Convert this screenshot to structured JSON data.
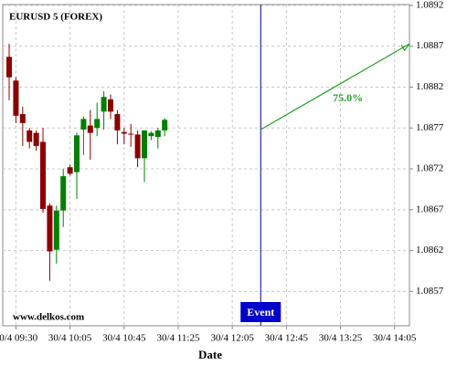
{
  "chart_data": {
    "type": "candlestick",
    "title": "EURUSD 5 (FOREX)",
    "x_label": "Date",
    "watermark": "www.delkos.com",
    "up_color": "#008000",
    "down_color": "#8b0000",
    "grid": true,
    "x": [
      0,
      1,
      2,
      3,
      4,
      5,
      6,
      7,
      8,
      9,
      10,
      11,
      12,
      13,
      14,
      15,
      16,
      17,
      18,
      19,
      20,
      21,
      22,
      23
    ],
    "open": [
      1.08857,
      1.08828,
      1.08787,
      1.08767,
      1.08764,
      1.08753,
      1.08675,
      1.08621,
      1.08669,
      1.08722,
      1.08716,
      1.08768,
      1.08773,
      1.0877,
      1.0879,
      1.08805,
      1.08787,
      1.08765,
      1.08763,
      1.08762,
      1.08733,
      1.0876,
      1.08759,
      1.08767
    ],
    "high": [
      1.08873,
      1.08832,
      1.08796,
      1.0877,
      1.08767,
      1.0877,
      1.08678,
      1.08675,
      1.0872,
      1.08725,
      1.08764,
      1.08784,
      1.08792,
      1.08801,
      1.08815,
      1.08811,
      1.08792,
      1.0877,
      1.08775,
      1.08767,
      1.08767,
      1.08766,
      1.0877,
      1.08782
    ],
    "low": [
      1.08804,
      1.08776,
      1.08748,
      1.08745,
      1.08742,
      1.08666,
      1.08583,
      1.08604,
      1.08649,
      1.08712,
      1.08683,
      1.08737,
      1.08731,
      1.0876,
      1.08768,
      1.08781,
      1.0875,
      1.0875,
      1.08747,
      1.08722,
      1.08704,
      1.08755,
      1.08745,
      1.0876
    ],
    "close": [
      1.08832,
      1.08785,
      1.08776,
      1.08753,
      1.08748,
      1.08671,
      1.08619,
      1.08669,
      1.08711,
      1.08714,
      1.08761,
      1.08781,
      1.08764,
      1.08781,
      1.08808,
      1.0879,
      1.08767,
      1.08763,
      1.08762,
      1.08733,
      1.08767,
      1.08764,
      1.08767,
      1.0878
    ],
    "xlim": [
      -0.95,
      59.2
    ],
    "ylim": [
      1.08528,
      1.08921
    ],
    "yticks": [
      1.0857,
      1.0862,
      1.0867,
      1.0872,
      1.0877,
      1.0882,
      1.0887,
      1.0892
    ],
    "xticks": [
      {
        "value": 1,
        "label": "30/4 09:30"
      },
      {
        "value": 9,
        "label": "30/4 10:05"
      },
      {
        "value": 17,
        "label": "30/4 10:45"
      },
      {
        "value": 25,
        "label": "30/4 11:25"
      },
      {
        "value": 33,
        "label": "30/4 12:05"
      },
      {
        "value": 41,
        "label": "30/4 12:45"
      },
      {
        "value": 49,
        "label": "30/4 13:25"
      },
      {
        "value": 57,
        "label": "30/4 14:05"
      }
    ],
    "event": {
      "x": 37.2,
      "label": "Event",
      "color": "#0000cc"
    },
    "projection": {
      "x0": 37.2,
      "y0": 1.08768,
      "x1": 59.2,
      "y1": 1.08873,
      "label": "75.0%",
      "color": "#22a022"
    }
  }
}
